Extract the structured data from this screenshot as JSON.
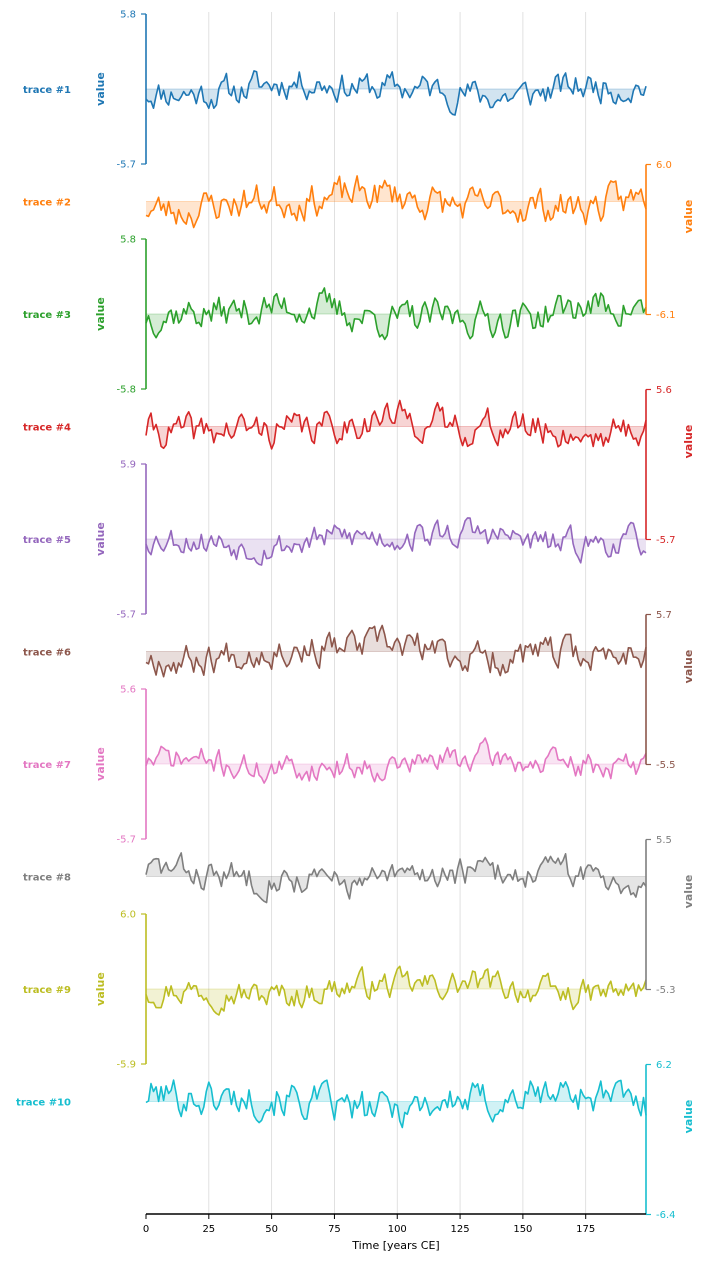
{
  "chart_data": {
    "type": "line",
    "subtype": "stacked-offset-traces",
    "xlabel": "Time [years CE]",
    "xlim": [
      0,
      199
    ],
    "xticks": [
      0,
      25,
      50,
      75,
      100,
      125,
      150,
      175
    ],
    "grid": "vertical",
    "series": [
      {
        "name": "trace #1",
        "color": "#1f77b4",
        "axis_side": "left",
        "ylabel": "value",
        "tick_labels": [
          "5.8",
          "-5.7"
        ],
        "baseline": 0.0,
        "amplitude": 1.0,
        "seed": 11
      },
      {
        "name": "trace #2",
        "color": "#ff7f0e",
        "axis_side": "right",
        "ylabel": "value",
        "tick_labels": [
          "6.0",
          "-6.1"
        ],
        "baseline": 0.0,
        "amplitude": 1.0,
        "seed": 23
      },
      {
        "name": "trace #3",
        "color": "#2ca02c",
        "axis_side": "left",
        "ylabel": "value",
        "tick_labels": [
          "5.8",
          "-5.8"
        ],
        "baseline": 0.0,
        "amplitude": 1.0,
        "seed": 37
      },
      {
        "name": "trace #4",
        "color": "#d62728",
        "axis_side": "right",
        "ylabel": "value",
        "tick_labels": [
          "5.6",
          "-5.7"
        ],
        "baseline": 0.0,
        "amplitude": 1.0,
        "seed": 41
      },
      {
        "name": "trace #5",
        "color": "#9467bd",
        "axis_side": "left",
        "ylabel": "value",
        "tick_labels": [
          "5.9",
          "-5.7"
        ],
        "baseline": 0.0,
        "amplitude": 1.0,
        "seed": 53
      },
      {
        "name": "trace #6",
        "color": "#8c564b",
        "axis_side": "right",
        "ylabel": "value",
        "tick_labels": [
          "5.7",
          "-5.5"
        ],
        "baseline": 0.0,
        "amplitude": 1.0,
        "seed": 67
      },
      {
        "name": "trace #7",
        "color": "#e377c2",
        "axis_side": "left",
        "ylabel": "value",
        "tick_labels": [
          "5.6",
          "-5.7"
        ],
        "baseline": 0.0,
        "amplitude": 1.0,
        "seed": 71
      },
      {
        "name": "trace #8",
        "color": "#7f7f7f",
        "axis_side": "right",
        "ylabel": "value",
        "tick_labels": [
          "5.5",
          "-5.3"
        ],
        "baseline": 0.0,
        "amplitude": 1.0,
        "seed": 83
      },
      {
        "name": "trace #9",
        "color": "#bcbd22",
        "axis_side": "left",
        "ylabel": "value",
        "tick_labels": [
          "6.0",
          "-5.9"
        ],
        "baseline": 0.0,
        "amplitude": 1.0,
        "seed": 97
      },
      {
        "name": "trace #10",
        "color": "#17becf",
        "axis_side": "right",
        "ylabel": "value",
        "tick_labels": [
          "6.2",
          "-6.4"
        ],
        "baseline": 0.0,
        "amplitude": 1.0,
        "seed": 101
      }
    ]
  }
}
